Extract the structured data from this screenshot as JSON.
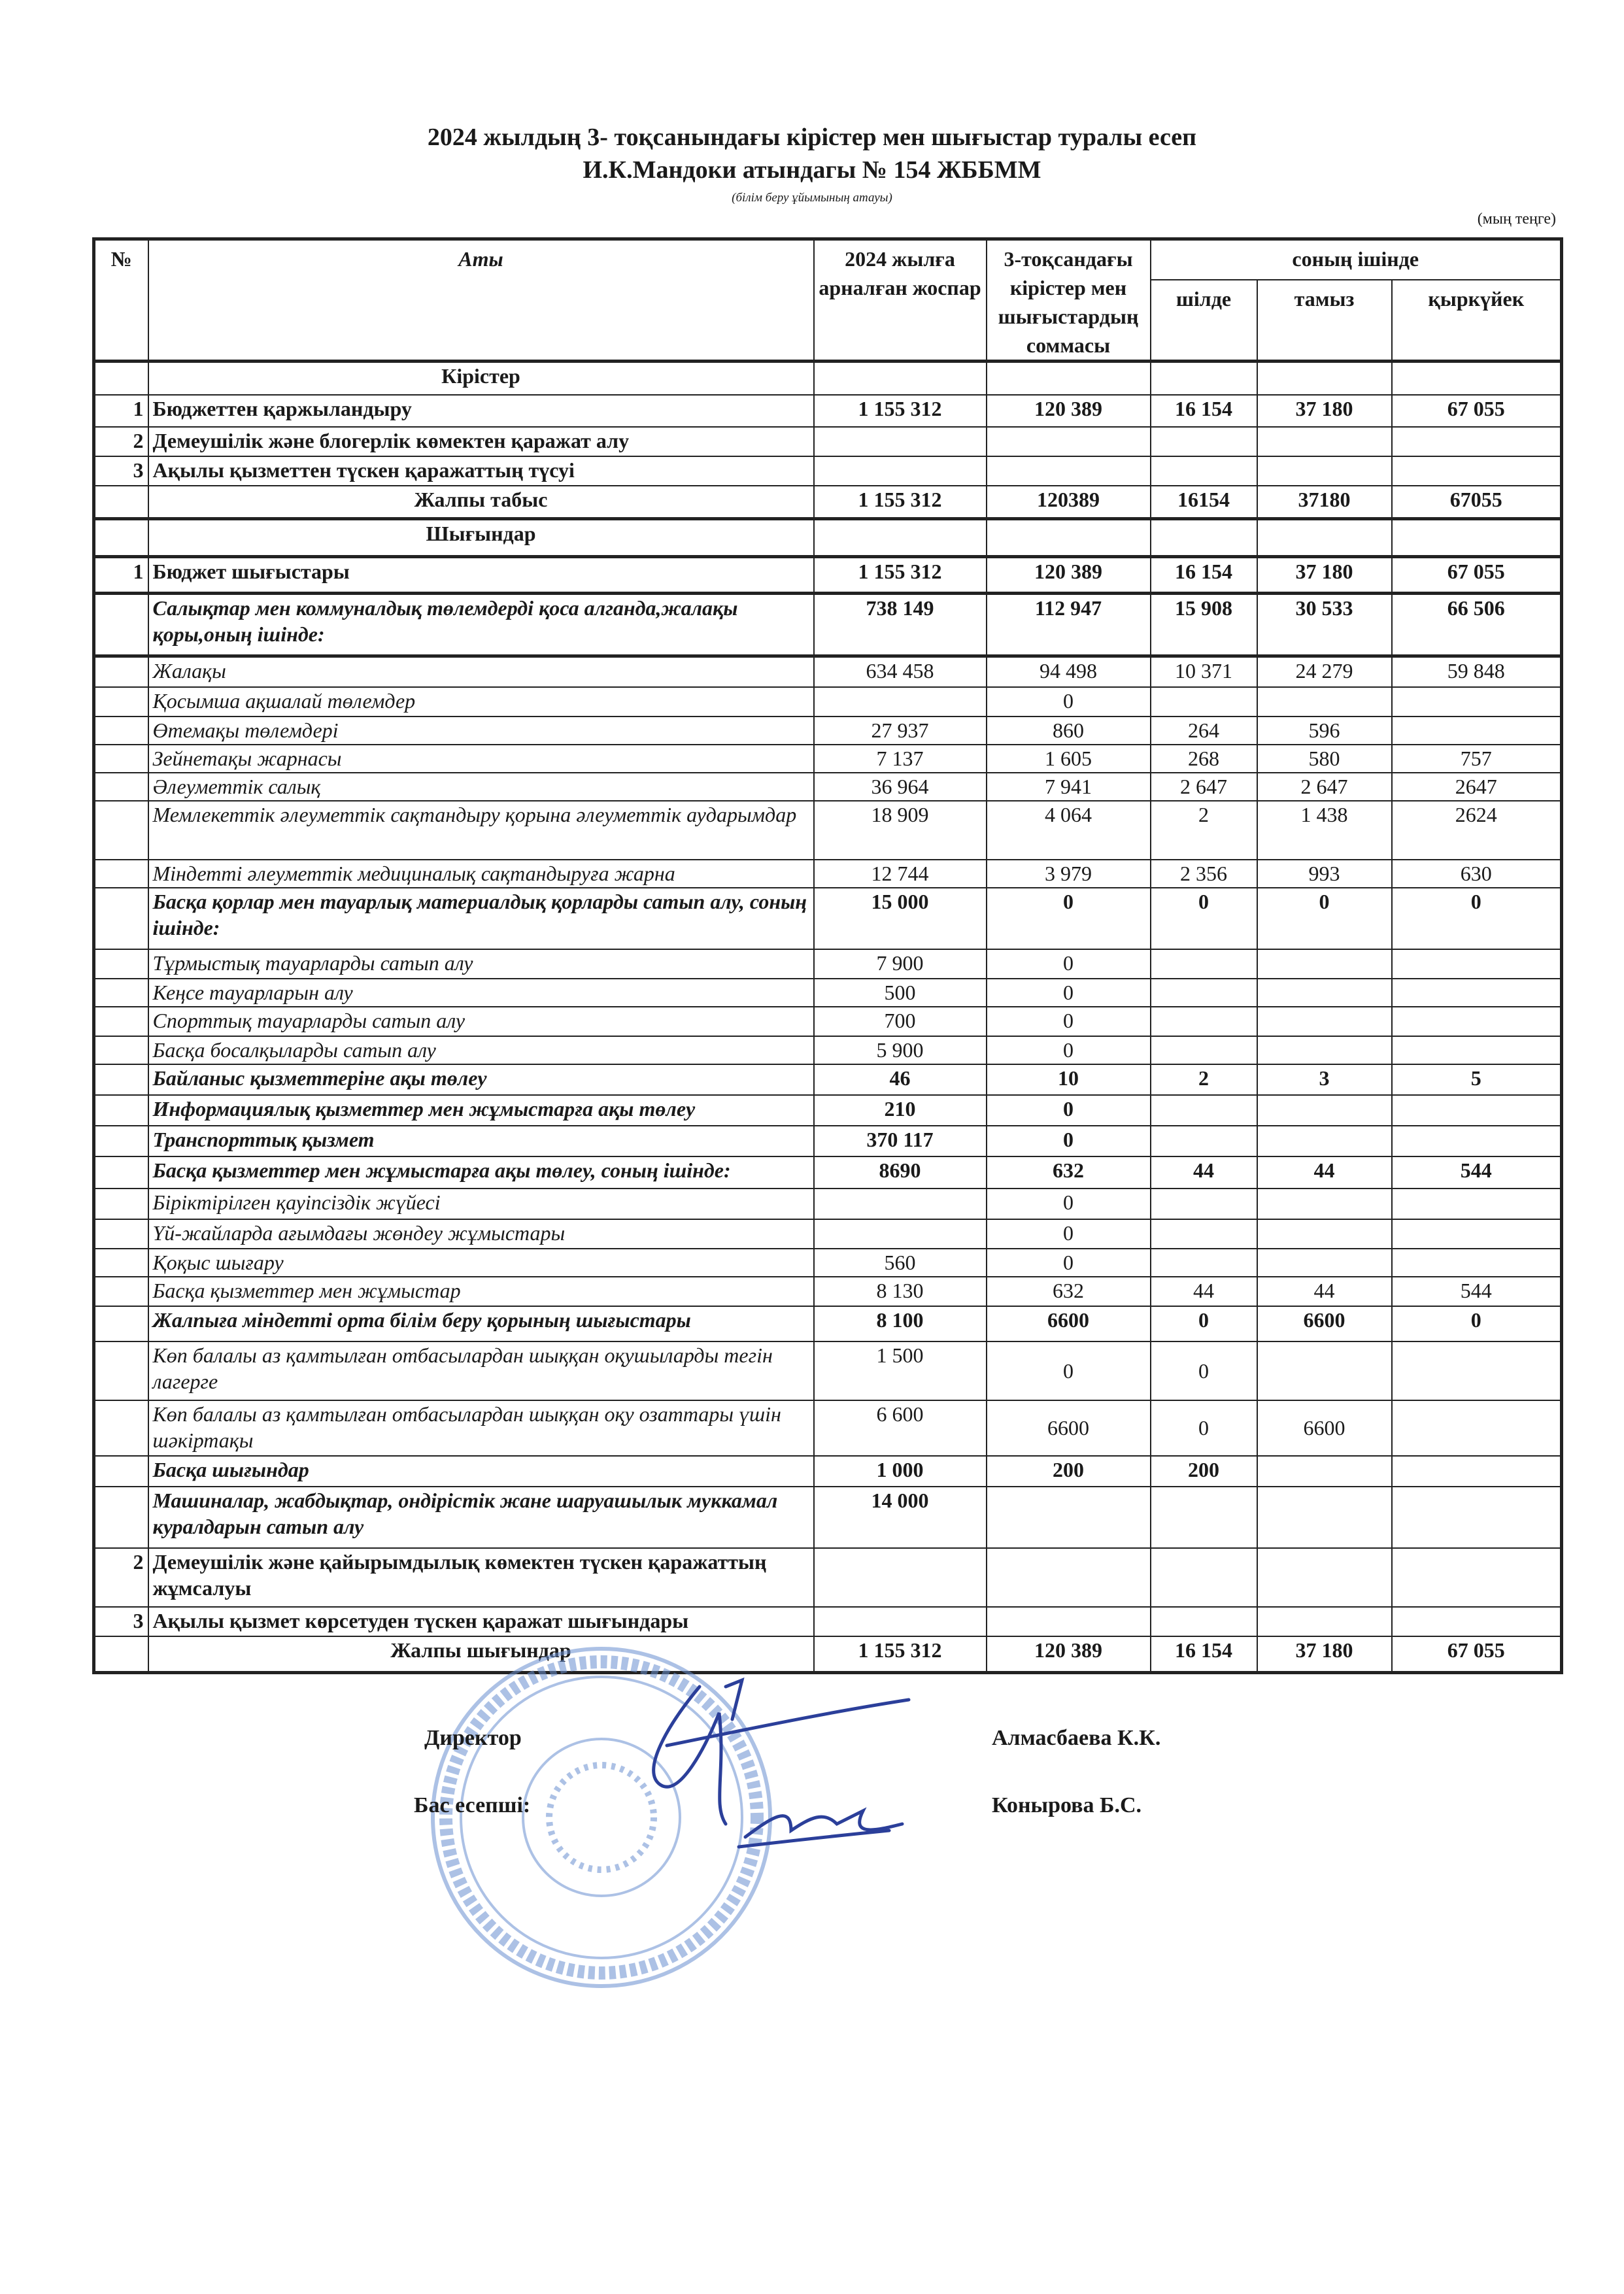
{
  "header": {
    "title": "2024 жылдың  3- тоқсанындағы кірістер мен шығыстар туралы есеп",
    "organization": "И.К.Мандоки атындагы № 154 ЖББММ",
    "organization_caption": "(білім беру ұйымының  атауы)",
    "unit": "(мың теңге)"
  },
  "table": {
    "columns": {
      "num": "№",
      "name": "Аты",
      "plan": "2024 жылға арналған жоспар",
      "q3": "3-тоқсандағы кірістер мен шығыстардың соммасы",
      "including": "соның ішінде",
      "jul": "шілде",
      "aug": "тамыз",
      "sep": "қыркүйек"
    },
    "rows": [
      [
        "",
        "Кірістер",
        "",
        "",
        "",
        "",
        ""
      ],
      [
        "1",
        "Бюджеттен қаржыландыру",
        "1 155 312",
        "120 389",
        "16 154",
        "37 180",
        "67 055"
      ],
      [
        "2",
        "Демеушілік және блогерлік көмектен қаражат алу",
        "",
        "",
        "",
        "",
        ""
      ],
      [
        "3",
        "Ақылы қызметтен түскен қаражаттың түсуі",
        "",
        "",
        "",
        "",
        ""
      ],
      [
        "",
        "Жалпы табыс",
        "1 155 312",
        "120389",
        "16154",
        "37180",
        "67055"
      ],
      [
        "",
        "Шығындар",
        "",
        "",
        "",
        "",
        ""
      ],
      [
        "1",
        "Бюджет шығыстары",
        "1 155 312",
        "120 389",
        "16 154",
        "37 180",
        "67 055"
      ],
      [
        "",
        "Салықтар мен коммуналдық төлемдерді қоса алганда,жалақы қоры,оның ішінде:",
        "738 149",
        "112 947",
        "15 908",
        "30 533",
        "66 506"
      ],
      [
        "",
        "Жалақы",
        "634 458",
        "94 498",
        "10 371",
        "24 279",
        "59 848"
      ],
      [
        "",
        "Қосымша ақшалай төлемдер",
        "",
        "0",
        "",
        "",
        ""
      ],
      [
        "",
        "Өтемақы төлемдері",
        "27 937",
        "860",
        "264",
        "596",
        ""
      ],
      [
        "",
        "Зейнетақы  жарнасы",
        "7 137",
        "1 605",
        "268",
        "580",
        "757"
      ],
      [
        "",
        "Әлеуметтік салық",
        "36 964",
        "7 941",
        "2 647",
        "2 647",
        "2647"
      ],
      [
        "",
        "Мемлекеттік әлеуметтік сақтандыру қорына әлеуметтік аударымдар",
        "18 909",
        "4 064",
        "2",
        "1 438",
        "2624"
      ],
      [
        "",
        "Міндетті әлеуметтік медициналық  сақтандыруға жарна",
        "12 744",
        "3 979",
        "2 356",
        "993",
        "630"
      ],
      [
        "",
        "Басқа қорлар мен тауарлық материалдық қорларды сатып алу, соның ішінде:",
        "15 000",
        "0",
        "0",
        "0",
        "0"
      ],
      [
        "",
        "Тұрмыстық тауарларды сатып алу",
        "7 900",
        "0",
        "",
        "",
        ""
      ],
      [
        "",
        "Кеңсе тауарларын алу",
        "500",
        "0",
        "",
        "",
        ""
      ],
      [
        "",
        "Спорттық тауарларды сатып алу",
        "700",
        "0",
        "",
        "",
        ""
      ],
      [
        "",
        "Басқа босалқыларды сатып алу",
        "5 900",
        "0",
        "",
        "",
        ""
      ],
      [
        "",
        "Байланыс қызметтеріне ақы төлеу",
        "46",
        "10",
        "2",
        "3",
        "5"
      ],
      [
        "",
        "Информациялық қызметтер мен жұмыстарға ақы төлеу",
        "210",
        "0",
        "",
        "",
        ""
      ],
      [
        "",
        "Транспорттық қызмет",
        "370 117",
        "0",
        "",
        "",
        ""
      ],
      [
        "",
        "Басқа қызметтер мен жұмыстарға ақы төлеу, соның ішінде:",
        "8690",
        "632",
        "44",
        "44",
        "544"
      ],
      [
        "",
        "Біріктірілген қауіпсіздік жүйесі",
        "",
        "0",
        "",
        "",
        ""
      ],
      [
        "",
        "Үй-жайларда ағымдағы жөндеу жұмыстары",
        "",
        "0",
        "",
        "",
        ""
      ],
      [
        "",
        "Қоқыс шығару",
        "560",
        "0",
        "",
        "",
        ""
      ],
      [
        "",
        "Басқа қызметтер мен жұмыстар",
        "8 130",
        "632",
        "44",
        "44",
        "544"
      ],
      [
        "",
        "Жалпыға міндетті орта білім беру  қорының шығыстары",
        "8 100",
        "6600",
        "0",
        "6600",
        "0"
      ],
      [
        "",
        "Көп балалы аз қамтылған отбасылардан шыққан оқушыларды тегін лагерге",
        "1 500",
        "0",
        "0",
        "",
        ""
      ],
      [
        "",
        "Көп балалы аз қамтылған отбасылардан шыққан оқу озаттары үшін шәкіртақы",
        "6 600",
        "6600",
        "0",
        "6600",
        ""
      ],
      [
        "",
        "Басқа шығындар",
        "1 000",
        "200",
        "200",
        "",
        ""
      ],
      [
        "",
        "Машиналар, жабдықтар, ондірістік жане шаруашылык муккамал куралдарын сатып алу",
        "14 000",
        "",
        "",
        "",
        ""
      ],
      [
        "2",
        "Демеушілік және қайырымдылық  көмектен түскен қаражаттың жұмсалуы",
        "",
        "",
        "",
        "",
        ""
      ],
      [
        "3",
        "Ақылы қызмет көрсетуден  түскен қаражат шығындары",
        "",
        "",
        "",
        "",
        ""
      ],
      [
        "",
        "Жалпы шығындар",
        "1 155 312",
        "120 389",
        "16 154",
        "37 180",
        "67 055"
      ]
    ]
  },
  "signatures": {
    "director_label": "Директор",
    "director_name": "Алмасбаева К.К.",
    "accountant_label": "Бас есепші:",
    "accountant_name": "Конырова Б.С."
  },
  "colors": {
    "stamp": "#6a8fd0",
    "ink": "#2b3f9a"
  }
}
